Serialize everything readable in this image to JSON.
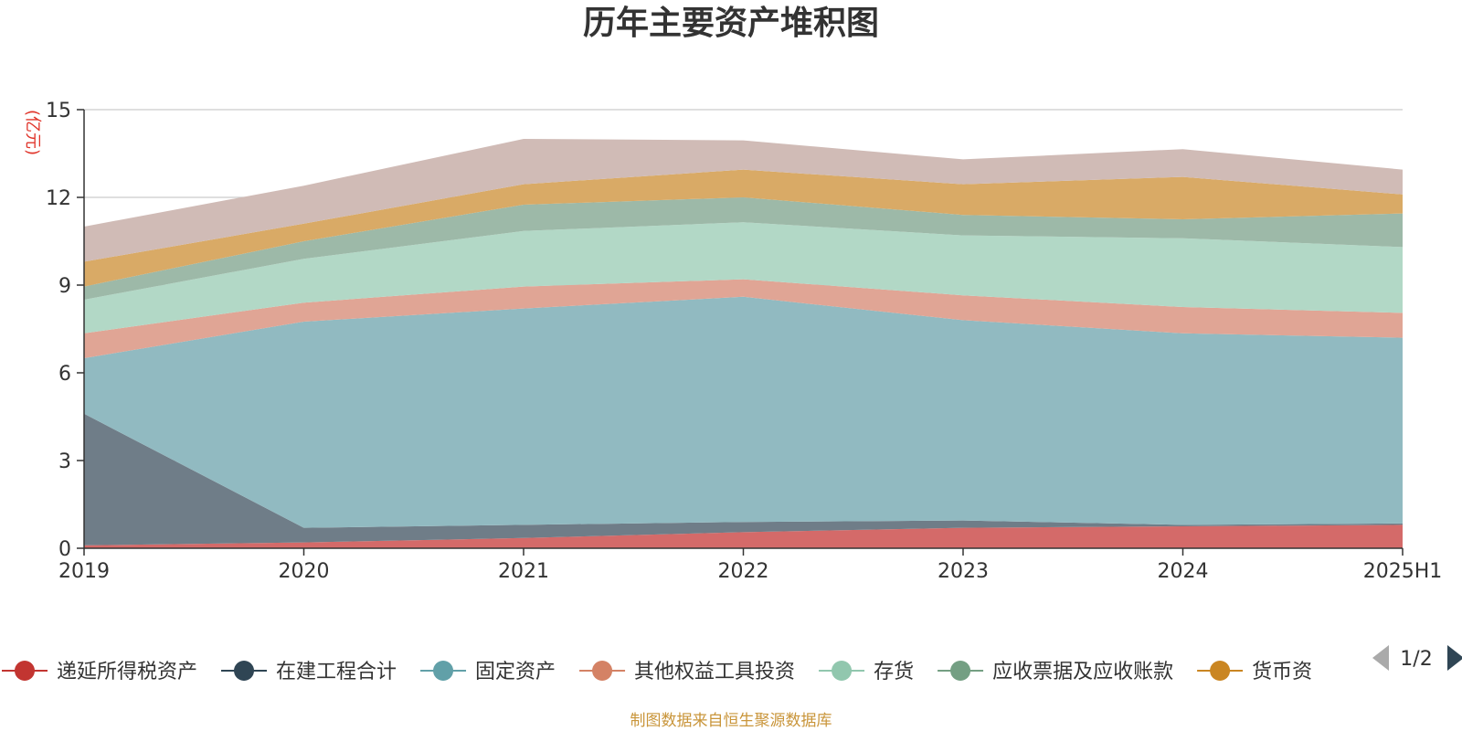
{
  "chart_data": {
    "type": "area",
    "stacked": true,
    "title": "历年主要资产堆积图",
    "ylabel": "(亿元)",
    "x": [
      "2019",
      "2020",
      "2021",
      "2022",
      "2023",
      "2024",
      "2025H1"
    ],
    "ylim": [
      0,
      15
    ],
    "yticks": [
      "0",
      "3",
      "6",
      "9",
      "12",
      "15"
    ],
    "grid": true,
    "series": [
      {
        "name": "递延所得税资产",
        "color": "#c23531",
        "fill": "#d46a69",
        "values": [
          0.1,
          0.2,
          0.35,
          0.55,
          0.7,
          0.75,
          0.8
        ]
      },
      {
        "name": "在建工程合计",
        "color": "#2f4554",
        "fill": "#6f7d88",
        "values": [
          4.5,
          0.5,
          0.45,
          0.35,
          0.25,
          0.05,
          0.05
        ]
      },
      {
        "name": "固定资产",
        "color": "#61a0a8",
        "fill": "#91bac1",
        "values": [
          1.9,
          7.05,
          7.4,
          7.7,
          6.85,
          6.55,
          6.35
        ]
      },
      {
        "name": "其他权益工具投资",
        "color": "#d48265",
        "fill": "#e0a595",
        "values": [
          0.85,
          0.65,
          0.75,
          0.6,
          0.85,
          0.9,
          0.85
        ]
      },
      {
        "name": "存货",
        "color": "#91c7ae",
        "fill": "#b2d8c6",
        "values": [
          1.15,
          1.5,
          1.9,
          1.95,
          2.05,
          2.35,
          2.25
        ]
      },
      {
        "name": "应收票据及应收账款",
        "color": "#749f83",
        "fill": "#9db9a8",
        "values": [
          0.45,
          0.6,
          0.9,
          0.85,
          0.7,
          0.65,
          1.15
        ]
      },
      {
        "name": "货币资",
        "color": "#ca8622",
        "fill": "#d9aa66",
        "values": [
          0.85,
          0.6,
          0.7,
          0.95,
          1.05,
          1.45,
          0.65
        ]
      },
      {
        "name": "",
        "color": "#bda29a",
        "fill": "#d0bbb6",
        "values": [
          1.2,
          1.3,
          1.55,
          1.0,
          0.85,
          0.95,
          0.85
        ]
      }
    ],
    "legend": {
      "placement": "bottom",
      "page": "1/2"
    }
  },
  "source": "制图数据来自恒生聚源数据库"
}
